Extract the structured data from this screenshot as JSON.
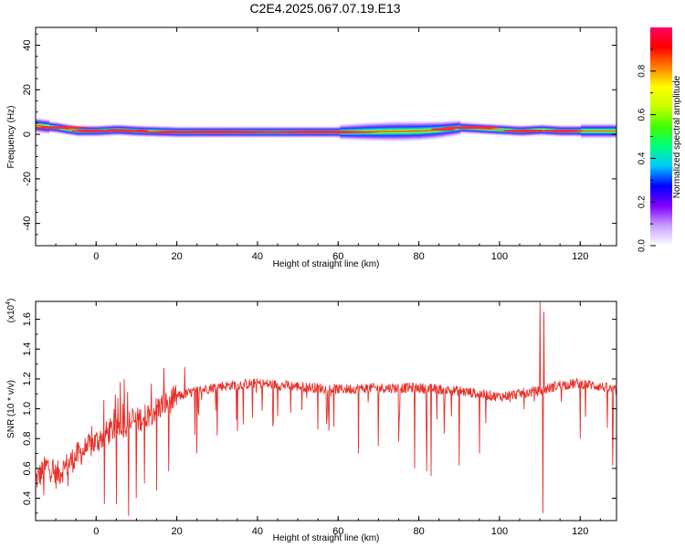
{
  "title": "C2E4.2025.067.07.19.E13",
  "chart_data": [
    {
      "type": "heatmap",
      "xlabel": "Height of straight line (km)",
      "ylabel": "Frequency (Hz)",
      "xlim": [
        -15,
        129
      ],
      "ylim": [
        -50,
        48
      ],
      "x_ticks": [
        0,
        20,
        40,
        60,
        80,
        100,
        120
      ],
      "y_ticks": [
        40,
        20,
        0,
        -20,
        -40
      ],
      "colorbar": {
        "label": "Normalized spectral amplitude",
        "ticks": [
          "0.0",
          "0.2",
          "0.4",
          "0.6",
          "0.8"
        ],
        "range": [
          0,
          1
        ],
        "colors": [
          "#ffffff",
          "#c8a0ff",
          "#8000ff",
          "#0000ff",
          "#00c8ff",
          "#00ff80",
          "#40ff00",
          "#c8ff00",
          "#ffff00",
          "#ff8000",
          "#ff0000",
          "#ff0060"
        ]
      },
      "band": {
        "center_hz": [
          [
            -15,
            4
          ],
          [
            -10,
            3
          ],
          [
            -5,
            1.5
          ],
          [
            0,
            1.5
          ],
          [
            5,
            2
          ],
          [
            10,
            1.5
          ],
          [
            20,
            1
          ],
          [
            40,
            1
          ],
          [
            60,
            1
          ],
          [
            80,
            1.5
          ],
          [
            85,
            2
          ],
          [
            90,
            3
          ],
          [
            100,
            2
          ],
          [
            105,
            1.5
          ],
          [
            110,
            2
          ],
          [
            115,
            1.5
          ],
          [
            120,
            1.5
          ],
          [
            129,
            1.5
          ]
        ],
        "peak_amplitude": 1.0
      }
    },
    {
      "type": "line",
      "xlabel": "Height of straight line (km)",
      "ylabel": "SNR (10 * v/v)",
      "y_multiplier": "(x10",
      "y_multiplier_exp": "4",
      "y_multiplier_close": ")",
      "xlim": [
        -15,
        129
      ],
      "ylim": [
        0.25,
        1.72
      ],
      "x_ticks": [
        0,
        20,
        40,
        60,
        80,
        100,
        120
      ],
      "y_ticks": [
        "0.4",
        "0.6",
        "0.8",
        "1.0",
        "1.2",
        "1.4",
        "1.6"
      ],
      "line_color": "#e8302a",
      "trend": [
        [
          -15,
          0.52
        ],
        [
          -12,
          0.62
        ],
        [
          -10,
          0.55
        ],
        [
          -5,
          0.68
        ],
        [
          0,
          0.78
        ],
        [
          5,
          0.88
        ],
        [
          10,
          0.92
        ],
        [
          15,
          1.0
        ],
        [
          20,
          1.08
        ],
        [
          25,
          1.12
        ],
        [
          30,
          1.15
        ],
        [
          40,
          1.17
        ],
        [
          50,
          1.15
        ],
        [
          60,
          1.13
        ],
        [
          70,
          1.14
        ],
        [
          80,
          1.14
        ],
        [
          90,
          1.12
        ],
        [
          100,
          1.08
        ],
        [
          105,
          1.1
        ],
        [
          110,
          1.12
        ],
        [
          115,
          1.16
        ],
        [
          120,
          1.17
        ],
        [
          125,
          1.15
        ],
        [
          129,
          1.12
        ]
      ],
      "spikes": [
        [
          -13,
          0.42
        ],
        [
          -7,
          0.48
        ],
        [
          2,
          0.36
        ],
        [
          5,
          0.36
        ],
        [
          6,
          1.18
        ],
        [
          7,
          1.2
        ],
        [
          8,
          0.28
        ],
        [
          10,
          0.4
        ],
        [
          12,
          0.5
        ],
        [
          15,
          0.45
        ],
        [
          18,
          0.58
        ],
        [
          22,
          1.28
        ],
        [
          25,
          0.7
        ],
        [
          30,
          0.82
        ],
        [
          35,
          0.85
        ],
        [
          45,
          0.95
        ],
        [
          55,
          0.86
        ],
        [
          65,
          0.7
        ],
        [
          70,
          0.75
        ],
        [
          75,
          0.78
        ],
        [
          79,
          0.6
        ],
        [
          82,
          0.58
        ],
        [
          83,
          0.55
        ],
        [
          90,
          0.62
        ],
        [
          95,
          0.7
        ],
        [
          110,
          1.72
        ],
        [
          110.7,
          0.3
        ],
        [
          111,
          1.65
        ],
        [
          120,
          0.8
        ],
        [
          128,
          0.62
        ]
      ]
    }
  ]
}
